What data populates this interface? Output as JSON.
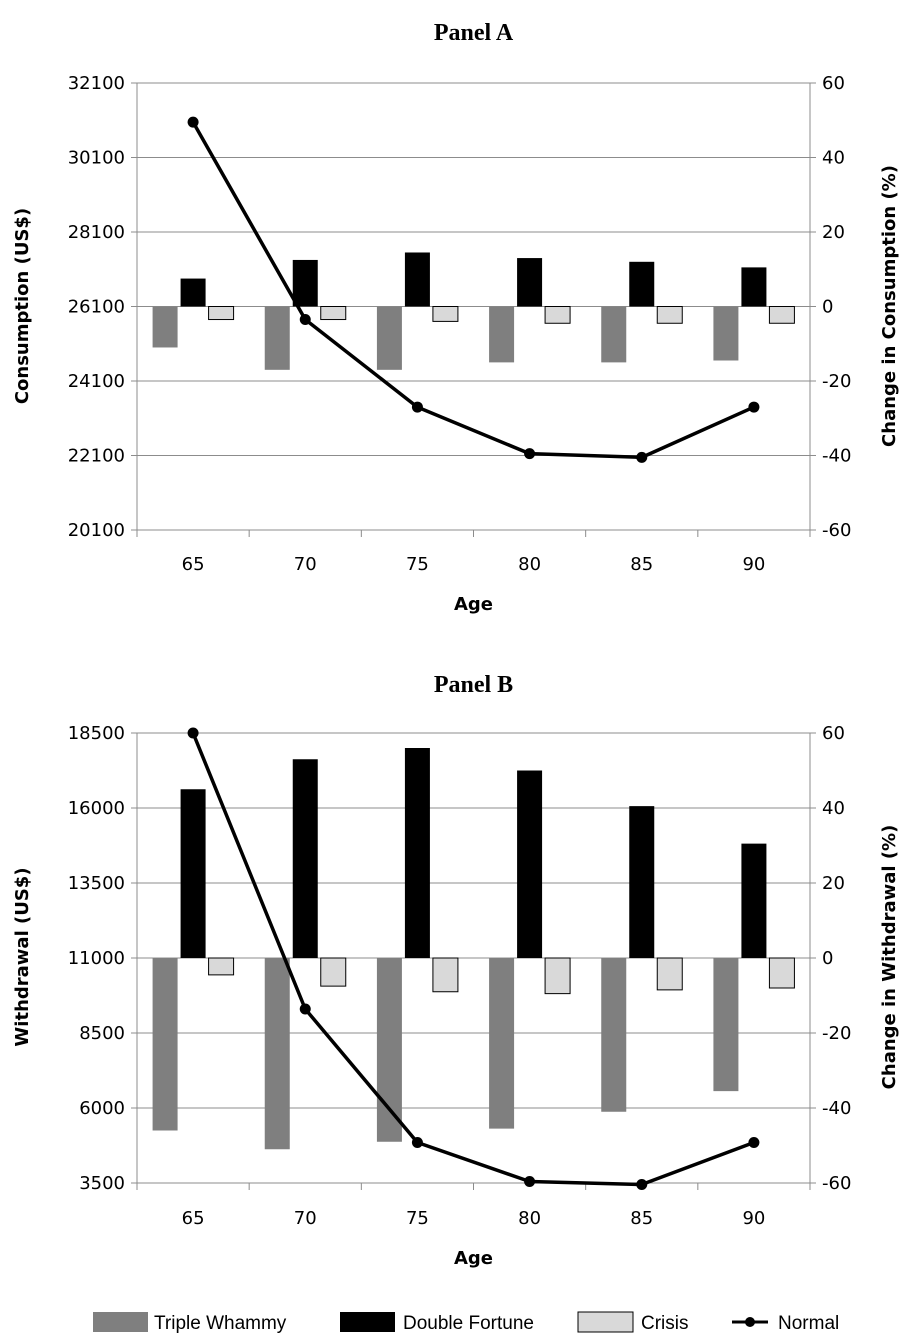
{
  "legend": [
    {
      "name": "Triple Whammy",
      "color": "#7f7f7f",
      "kind": "bar"
    },
    {
      "name": "Double Fortune",
      "color": "#000000",
      "kind": "bar"
    },
    {
      "name": "Crisis",
      "color": "#d9d9d9",
      "kind": "bar"
    },
    {
      "name": "Normal",
      "color": "#000000",
      "kind": "line"
    }
  ],
  "chart_data": [
    {
      "type": "bar",
      "title": "Panel A",
      "xlabel": "Age",
      "ylabel": "Consumption (US$)",
      "y2label": "Change in Consumption (%)",
      "categories": [
        "65",
        "70",
        "75",
        "80",
        "85",
        "90"
      ],
      "ylim": [
        20100,
        32100
      ],
      "yticks": [
        "32100",
        "30100",
        "28100",
        "26100",
        "24100",
        "22100",
        "20100"
      ],
      "y2lim": [
        -60,
        60
      ],
      "y2ticks": [
        "60",
        "40",
        "20",
        "0",
        "-20",
        "-40",
        "-60"
      ],
      "grid": true,
      "series": [
        {
          "name": "Triple Whammy",
          "axis": "y2",
          "values": [
            -11,
            -17,
            -17,
            -15,
            -15,
            -14.5
          ]
        },
        {
          "name": "Double Fortune",
          "axis": "y2",
          "values": [
            7.5,
            12.5,
            14.5,
            13,
            12,
            10.5
          ]
        },
        {
          "name": "Crisis",
          "axis": "y2",
          "values": [
            -3.5,
            -3.5,
            -4,
            -4.5,
            -4.5,
            -4.5
          ]
        },
        {
          "name": "Normal",
          "type": "line",
          "axis": "y",
          "values": [
            31050,
            25750,
            23400,
            22150,
            22050,
            23400
          ]
        }
      ]
    },
    {
      "type": "bar",
      "title": "Panel B",
      "xlabel": "Age",
      "ylabel": "Withdrawal (US$)",
      "y2label": "Change in Withdrawal (%)",
      "categories": [
        "65",
        "70",
        "75",
        "80",
        "85",
        "90"
      ],
      "ylim": [
        3500,
        18500
      ],
      "yticks": [
        "18500",
        "16000",
        "13500",
        "11000",
        "8500",
        "6000",
        "3500"
      ],
      "y2lim": [
        -60,
        60
      ],
      "y2ticks": [
        "60",
        "40",
        "20",
        "0",
        "-20",
        "-40",
        "-60"
      ],
      "grid": true,
      "series": [
        {
          "name": "Triple Whammy",
          "axis": "y2",
          "values": [
            -46,
            -51,
            -49,
            -45.5,
            -41,
            -35.5
          ]
        },
        {
          "name": "Double Fortune",
          "axis": "y2",
          "values": [
            45,
            53,
            56,
            50,
            40.5,
            30.5
          ]
        },
        {
          "name": "Crisis",
          "axis": "y2",
          "values": [
            -4.5,
            -7.5,
            -9,
            -9.5,
            -8.5,
            -8
          ]
        },
        {
          "name": "Normal",
          "type": "line",
          "axis": "y",
          "values": [
            18500,
            9300,
            4850,
            3550,
            3450,
            4850
          ]
        }
      ]
    }
  ]
}
